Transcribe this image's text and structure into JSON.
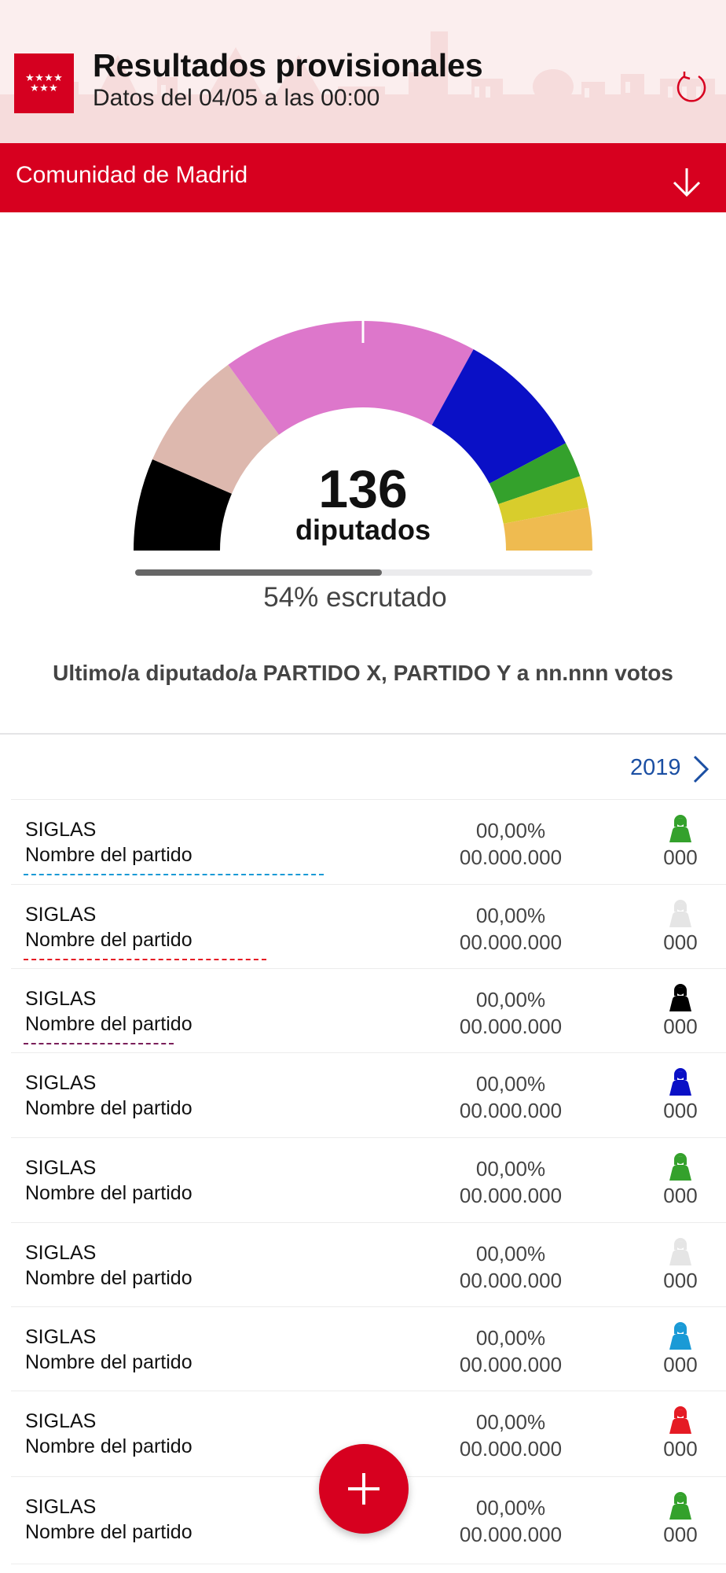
{
  "header": {
    "title": "Resultados provisionales",
    "subtitle": "Datos del 04/05 a las 00:00",
    "logo_icon": "madrid-flag-stars-icon",
    "refresh_icon": "refresh-icon",
    "accent_color": "#d7001f"
  },
  "region_selector": {
    "label": "Comunidad de Madrid",
    "icon": "arrow-down-icon"
  },
  "hemicycle": {
    "total_seats": "136",
    "seats_label": "diputados",
    "segments": [
      {
        "color": "#000000",
        "fraction": 0.13
      },
      {
        "color": "#ddb8ae",
        "fraction": 0.17
      },
      {
        "color": "#dd77cb",
        "fraction": 0.36
      },
      {
        "color": "#0a10c6",
        "fraction": 0.185
      },
      {
        "color": "#34a12c",
        "fraction": 0.05
      },
      {
        "color": "#d8cd2c",
        "fraction": 0.045
      },
      {
        "color": "#efbb50",
        "fraction": 0.06
      }
    ]
  },
  "progress": {
    "value": 0.54,
    "label": "54% escrutado"
  },
  "last_seat": "Ultimo/a  diputado/a PARTIDO X, PARTIDO Y a nn.nnn votos",
  "comparison": {
    "year": "2019",
    "icon": "chevron-right-icon"
  },
  "parties": [
    {
      "acronym": "SIGLAS",
      "name": "Nombre del partido",
      "percent": "00,00%",
      "votes": "00.000.000",
      "seats": "000",
      "color": "#34a12c",
      "underline_color": "#1a9ad6",
      "underline_fraction": 0.42
    },
    {
      "acronym": "SIGLAS",
      "name": "Nombre del partido",
      "percent": "00,00%",
      "votes": "00.000.000",
      "seats": "000",
      "color": "#e5e5e5",
      "underline_color": "#e51b24",
      "underline_fraction": 0.34
    },
    {
      "acronym": "SIGLAS",
      "name": "Nombre del partido",
      "percent": "00,00%",
      "votes": "00.000.000",
      "seats": "000",
      "color": "#000000",
      "underline_color": "#7a1f5a",
      "underline_fraction": 0.21
    },
    {
      "acronym": "SIGLAS",
      "name": "Nombre del partido",
      "percent": "00,00%",
      "votes": "00.000.000",
      "seats": "000",
      "color": "#0a10c6"
    },
    {
      "acronym": "SIGLAS",
      "name": "Nombre del partido",
      "percent": "00,00%",
      "votes": "00.000.000",
      "seats": "000",
      "color": "#34a12c"
    },
    {
      "acronym": "SIGLAS",
      "name": "Nombre del partido",
      "percent": "00,00%",
      "votes": "00.000.000",
      "seats": "000",
      "color": "#e5e5e5"
    },
    {
      "acronym": "SIGLAS",
      "name": "Nombre del partido",
      "percent": "00,00%",
      "votes": "00.000.000",
      "seats": "000",
      "color": "#1a9ad6"
    },
    {
      "acronym": "SIGLAS",
      "name": "Nombre del partido",
      "percent": "00,00%",
      "votes": "00.000.000",
      "seats": "000",
      "color": "#e51b24"
    },
    {
      "acronym": "SIGLAS",
      "name": "Nombre del partido",
      "percent": "00,00%",
      "votes": "00.000.000",
      "seats": "000",
      "color": "#34a12c"
    }
  ],
  "fab": {
    "icon": "plus-icon"
  }
}
